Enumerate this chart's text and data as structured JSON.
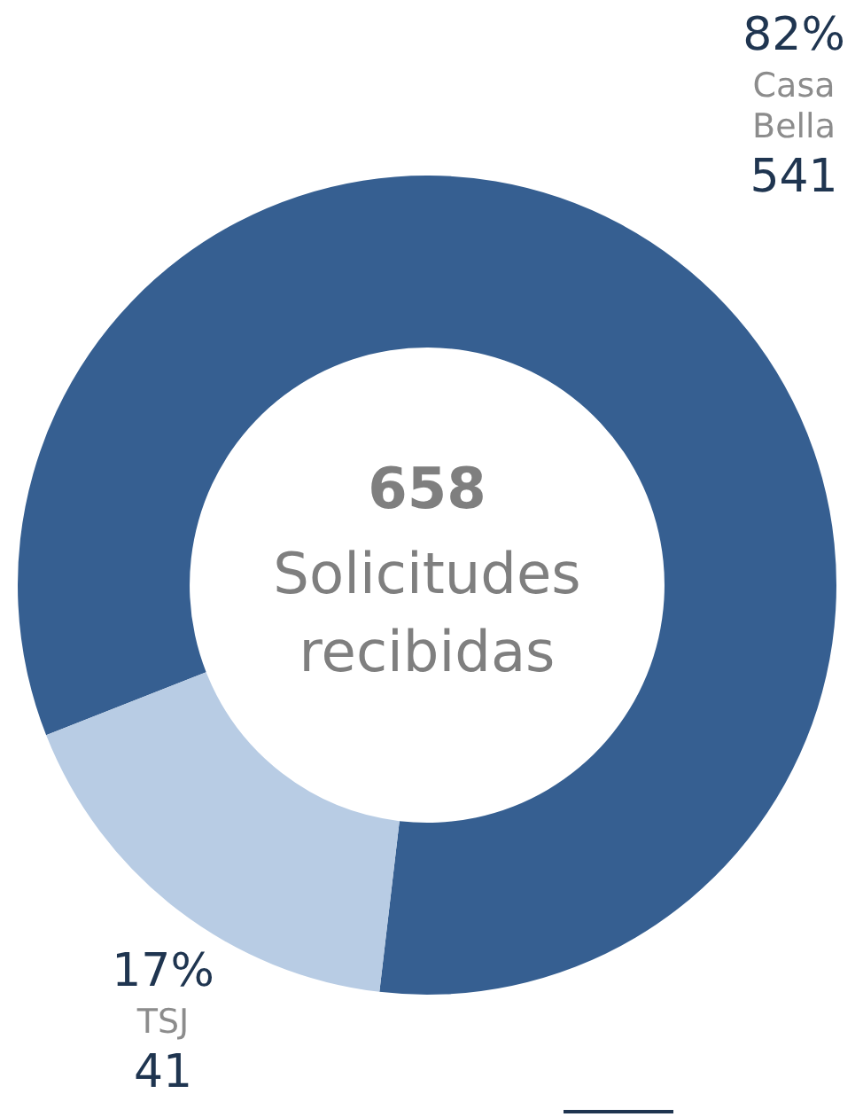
{
  "chart_data": {
    "type": "donut",
    "title": "658",
    "subtitle": "Solicitudes recibidas",
    "categories": [
      "Casa Bella",
      "TSJ"
    ],
    "values": [
      82,
      17
    ],
    "colors": [
      "#365f91",
      "#b8cce4"
    ],
    "value_labels": [
      "82%",
      "17%"
    ],
    "annotations": [
      {
        "text": "541",
        "x": "Casa Bella"
      },
      {
        "text": "41",
        "x": "TSJ"
      }
    ],
    "legend": false
  }
}
